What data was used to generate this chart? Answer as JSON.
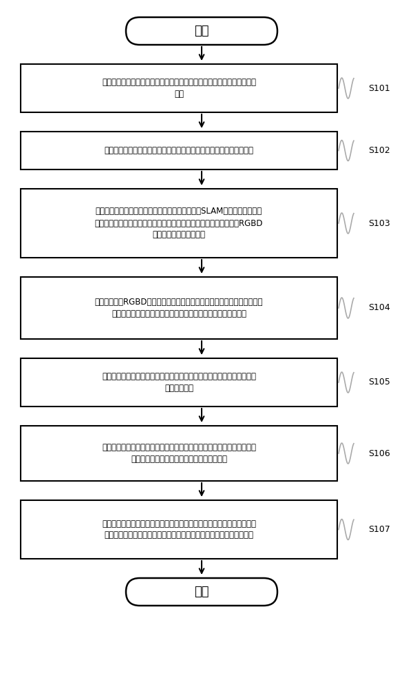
{
  "title": "",
  "background_color": "#ffffff",
  "start_end_color": "#ffffff",
  "box_color": "#ffffff",
  "box_edge_color": "#000000",
  "arrow_color": "#000000",
  "text_color": "#000000",
  "step_label_color": "#000000",
  "start_label": "开始",
  "end_label": "结束",
  "steps": [
    {
      "id": "S101",
      "text": "联网的多台三维打印机将打印完成的信号与相应的打印机编号给服务器主\n控端"
    },
    {
      "id": "S102",
      "text": "服务器主控端发送待打印机的编码与位置给移动机械臂以完成抓取操作"
    },
    {
      "id": "S103",
      "text": "移动机械臂接收抓取信号对相应位置的机械臂通过SLAM同步导航与定位技\n术进行打印机位置的粗定位，将机械臂移动至打印机周围，并且使得RGBD\n相机位于待抓取工件一侧"
    },
    {
      "id": "S104",
      "text": "视觉模块通过RGBD相机接收图像信息，通过双通道模板匹配算法识别待抓\n取的物体的空间位置姿态，并将位置姿态信息发送给机械臂模块"
    },
    {
      "id": "S105",
      "text": "机械臂模块获取抓取信息，通过轨迹规划进行机械臂抓取，并将抓取成功\n与否结果反馈"
    },
    {
      "id": "S106",
      "text": "若抓取失败或待抓取零件的位置位于机械工作空间的范围以外，重新调整\n移动平台的位置调整抓取力重新完成抓取工作"
    },
    {
      "id": "S107",
      "text": "抓取完毕后将打印零件放置到移动机器人平台，将打印件托运至货架处，\n放置于对应的货架位置，完成柔性抓取过程．移动机器人回到工作原点"
    }
  ]
}
